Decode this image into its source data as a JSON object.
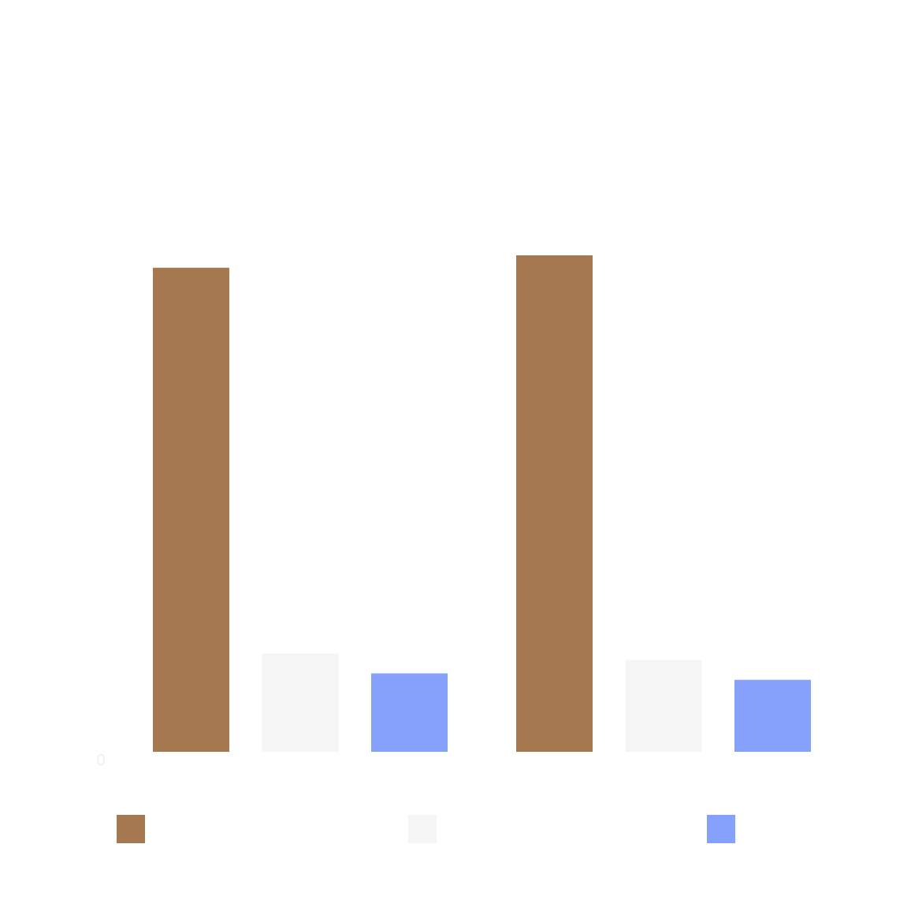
{
  "chart_data": {
    "type": "bar",
    "title": "",
    "xlabel": "",
    "ylabel": "",
    "categories": [
      "",
      ""
    ],
    "ylim": [
      0,
      100
    ],
    "y_tick_labels": [
      "0"
    ],
    "grid": false,
    "legend_position": "bottom",
    "series": [
      {
        "color": "#a67850",
        "values": [
          97.5,
          100
        ]
      },
      {
        "color": "#f5f5f5",
        "values": [
          19.8,
          18.5
        ]
      },
      {
        "color": "#86a1fb",
        "values": [
          15.8,
          14.5
        ]
      }
    ]
  }
}
